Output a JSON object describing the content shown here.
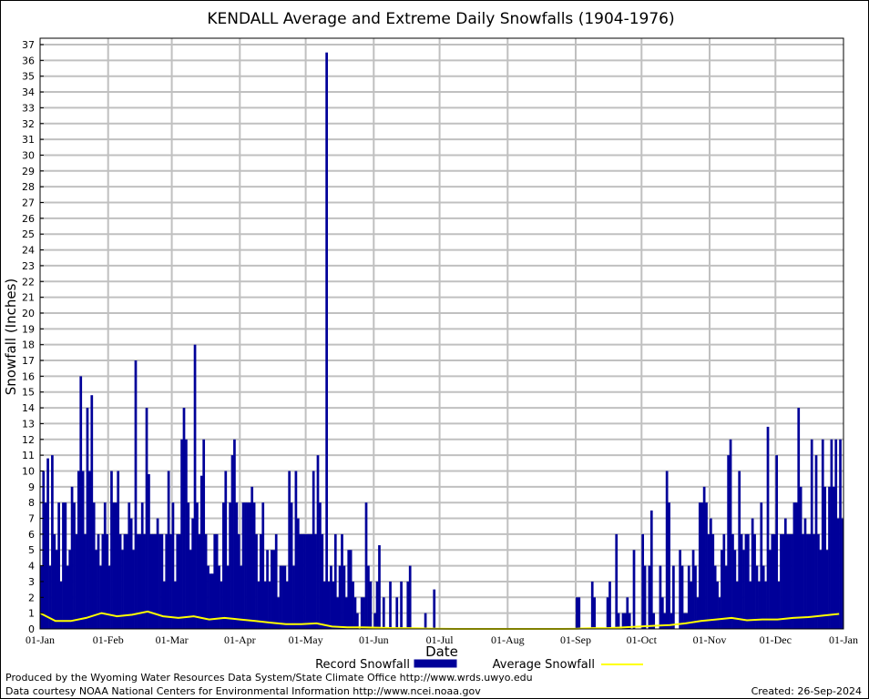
{
  "chart_data": {
    "type": "bar",
    "title": "KENDALL Average and Extreme Daily Snowfalls (1904-1976)",
    "xlabel": "Date",
    "ylabel": "Snowfall (Inches)",
    "ylim": [
      0,
      37
    ],
    "yticks": [
      "0",
      "1",
      "2",
      "3",
      "4",
      "5",
      "6",
      "7",
      "8",
      "9",
      "10",
      "11",
      "12",
      "13",
      "14",
      "15",
      "16",
      "17",
      "18",
      "19",
      "20",
      "21",
      "22",
      "23",
      "24",
      "25",
      "26",
      "27",
      "28",
      "29",
      "30",
      "31",
      "32",
      "33",
      "34",
      "35",
      "36",
      "37"
    ],
    "xticks": [
      {
        "label": "01-Jan",
        "day": 1
      },
      {
        "label": "01-Feb",
        "day": 32
      },
      {
        "label": "01-Mar",
        "day": 61
      },
      {
        "label": "01-Apr",
        "day": 92
      },
      {
        "label": "01-May",
        "day": 122
      },
      {
        "label": "01-Jun",
        "day": 153
      },
      {
        "label": "01-Jul",
        "day": 183
      },
      {
        "label": "01-Aug",
        "day": 214
      },
      {
        "label": "01-Sep",
        "day": 245
      },
      {
        "label": "01-Oct",
        "day": 275
      },
      {
        "label": "01-Nov",
        "day": 306
      },
      {
        "label": "01-Dec",
        "day": 336
      },
      {
        "label": "01-Jan",
        "day": 367
      }
    ],
    "grid": true,
    "legend_position": "bottom",
    "series": [
      {
        "name": "Record Snowfall",
        "type": "bar",
        "color": "#000099",
        "values": [
          4,
          10,
          8,
          10.8,
          4,
          11,
          6,
          5,
          8,
          3,
          8,
          8,
          4,
          5,
          9,
          8,
          6,
          10,
          16,
          10,
          6,
          14,
          10,
          14.8,
          8,
          5,
          6,
          4,
          6,
          8,
          6,
          4,
          10,
          8,
          8,
          10,
          6,
          5,
          6,
          6,
          8,
          7,
          5,
          17,
          6,
          6,
          8,
          6,
          14,
          9.8,
          6,
          6,
          6,
          7,
          6,
          6,
          3,
          6,
          10,
          6,
          8,
          3,
          6,
          6,
          12,
          14,
          12,
          8,
          5,
          7,
          18,
          8,
          6,
          9.7,
          12,
          6,
          4,
          3.5,
          3.5,
          6,
          6,
          4,
          3,
          8,
          10,
          4,
          8,
          11,
          12,
          8,
          6,
          4,
          8,
          8,
          8,
          8,
          9,
          8,
          6,
          3,
          6,
          8,
          3,
          5,
          3,
          5,
          5,
          6,
          2,
          4,
          4,
          4,
          3,
          10,
          8,
          4,
          10,
          7,
          6,
          6,
          6,
          6,
          6,
          6,
          10,
          6,
          11,
          8,
          6,
          3,
          36.5,
          3,
          4,
          3,
          6,
          2,
          4,
          6,
          4,
          2,
          5,
          5,
          3,
          2,
          1,
          0,
          2,
          2,
          8,
          4,
          3,
          0,
          1,
          3,
          5.3,
          0,
          2,
          0,
          0,
          3,
          0,
          0,
          2,
          0,
          3,
          0,
          0,
          3,
          4,
          0,
          0,
          0,
          0,
          0,
          0,
          1,
          0,
          0,
          0,
          2.5,
          0,
          0,
          0,
          0,
          0,
          0,
          0,
          0,
          0,
          0,
          0,
          0,
          0,
          0,
          0,
          0,
          0,
          0,
          0,
          0,
          0,
          0,
          0,
          0,
          0,
          0,
          0,
          0,
          0,
          0,
          0,
          0,
          0,
          0,
          0,
          0,
          0,
          0,
          0,
          0,
          0,
          0,
          0,
          0,
          0,
          0,
          0,
          0,
          0,
          0,
          0,
          0,
          0,
          0,
          0,
          0,
          0,
          0,
          0,
          0,
          0,
          0,
          0,
          0,
          2,
          2,
          0,
          0,
          0,
          0,
          0,
          3,
          2,
          0,
          0,
          0,
          0,
          0,
          2,
          3,
          0,
          0,
          6,
          1,
          0,
          1,
          1,
          2,
          1,
          0,
          5,
          0,
          0,
          0,
          6,
          4,
          0,
          4,
          7.5,
          1,
          0,
          0,
          4,
          2,
          1,
          10,
          8,
          1,
          4,
          0,
          0,
          5,
          4,
          1,
          1,
          4,
          3,
          5,
          4,
          2,
          8,
          8,
          9,
          8,
          6,
          7,
          6,
          4,
          3,
          2,
          5,
          6,
          4,
          11,
          12,
          6,
          5,
          3,
          10,
          6,
          5,
          6,
          6,
          3,
          7,
          6,
          4,
          3,
          8,
          4,
          3,
          12.8,
          5,
          6,
          6,
          11,
          3,
          6,
          6,
          7,
          6,
          6,
          6,
          8,
          8,
          14,
          9,
          6,
          7,
          6,
          6,
          12,
          6,
          11,
          6,
          5,
          12,
          9,
          5,
          9,
          12,
          9,
          12,
          7,
          12,
          7
        ]
      },
      {
        "name": "Average Snowfall",
        "type": "line",
        "color": "#ffff00",
        "x": [
          1,
          8,
          15,
          22,
          29,
          36,
          43,
          50,
          57,
          64,
          71,
          78,
          85,
          92,
          99,
          106,
          113,
          120,
          127,
          134,
          141,
          148,
          155,
          162,
          169,
          176,
          183,
          190,
          197,
          204,
          211,
          218,
          225,
          232,
          239,
          246,
          253,
          260,
          267,
          274,
          281,
          288,
          295,
          302,
          309,
          316,
          323,
          330,
          337,
          344,
          351,
          358,
          365
        ],
        "values": [
          1.0,
          0.5,
          0.5,
          0.7,
          1.0,
          0.8,
          0.9,
          1.1,
          0.8,
          0.7,
          0.8,
          0.6,
          0.7,
          0.6,
          0.5,
          0.4,
          0.3,
          0.3,
          0.35,
          0.15,
          0.1,
          0.1,
          0.08,
          0.05,
          0.05,
          0.03,
          0.02,
          0,
          0,
          0,
          0,
          0,
          0,
          0,
          0,
          0.02,
          0.05,
          0.05,
          0.1,
          0.15,
          0.2,
          0.25,
          0.35,
          0.5,
          0.6,
          0.7,
          0.55,
          0.6,
          0.6,
          0.7,
          0.75,
          0.85,
          0.95
        ]
      }
    ]
  },
  "footer": {
    "produced_by": "Produced by the Wyoming Water Resources Data System/State Climate Office http://www.wrds.uwyo.edu",
    "courtesy": "Data courtesy NOAA National Centers for Environmental Information http://www.ncei.noaa.gov",
    "created": "Created:  26-Sep-2024"
  }
}
